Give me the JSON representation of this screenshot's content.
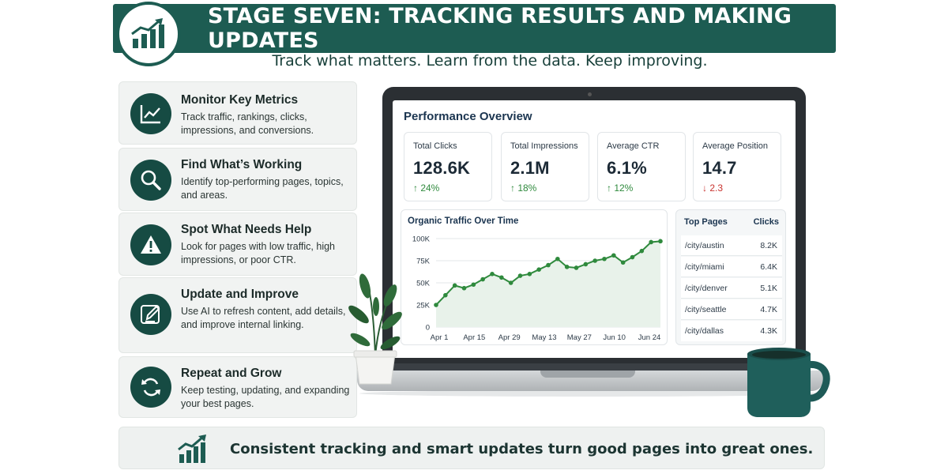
{
  "header": {
    "title": "STAGE SEVEN: TRACKING RESULTS AND MAKING UPDATES",
    "subtitle": "Track what matters. Learn from the data. Keep improving."
  },
  "steps": [
    {
      "title": "Monitor Key Metrics",
      "description": "Track traffic, rankings, clicks, impressions, and conversions.",
      "icon": "line-chart-icon"
    },
    {
      "title": "Find What’s Working",
      "description": "Identify top-performing pages, topics, and areas.",
      "icon": "magnifier-icon"
    },
    {
      "title": "Spot What Needs Help",
      "description": "Look for pages with low traffic, high impressions, or poor CTR.",
      "icon": "warning-icon"
    },
    {
      "title": "Update and Improve",
      "description": "Use AI to refresh content, add details, and improve internal linking.",
      "icon": "pencil-icon"
    },
    {
      "title": "Repeat and Grow",
      "description": "Keep testing, updating, and expanding your best pages.",
      "icon": "refresh-icon"
    }
  ],
  "dashboard": {
    "title": "Performance Overview",
    "kpis": [
      {
        "label": "Total Clicks",
        "value": "128.6K",
        "change": "↑ 24%",
        "direction": "up"
      },
      {
        "label": "Total Impressions",
        "value": "2.1M",
        "change": "↑ 18%",
        "direction": "up"
      },
      {
        "label": "Average CTR",
        "value": "6.1%",
        "change": "↑ 12%",
        "direction": "up"
      },
      {
        "label": "Average Position",
        "value": "14.7",
        "change": "↓ 2.3",
        "direction": "down"
      }
    ],
    "top_pages": {
      "header_left": "Top Pages",
      "header_right": "Clicks",
      "rows": [
        {
          "page": "/city/austin",
          "clicks": "8.2K"
        },
        {
          "page": "/city/miami",
          "clicks": "6.4K"
        },
        {
          "page": "/city/denver",
          "clicks": "5.1K"
        },
        {
          "page": "/city/seattle",
          "clicks": "4.7K"
        },
        {
          "page": "/city/dallas",
          "clicks": "4.3K"
        }
      ]
    }
  },
  "chart_data": {
    "type": "line",
    "title": "Organic Traffic Over Time",
    "xlabel": "",
    "ylabel": "",
    "x_tick_labels": [
      "Apr 1",
      "Apr 15",
      "Apr 29",
      "May 13",
      "May 27",
      "Jun 10",
      "Jun 24"
    ],
    "y_tick_labels": [
      "0",
      "25K",
      "50K",
      "75K",
      "100K"
    ],
    "ylim": [
      0,
      100000
    ],
    "grid": true,
    "series": [
      {
        "values": [
          25000,
          36000,
          47000,
          44000,
          48000,
          54000,
          60000,
          56000,
          50000,
          58000,
          60000,
          65000,
          70000,
          77000,
          68000,
          67000,
          71000,
          75000,
          77000,
          81000,
          73000,
          79000,
          86000,
          96000,
          97000
        ]
      }
    ],
    "colors": {
      "line": "#2f8a3d",
      "fill": "#e8f2ea",
      "grid": "#e3e7ea"
    }
  },
  "footer": {
    "text": "Consistent tracking and smart updates turn good pages into great ones."
  },
  "colors": {
    "brand": "#1d5c52",
    "icon_bg": "#164b43",
    "up": "#2f8a3d",
    "down": "#c93430"
  }
}
